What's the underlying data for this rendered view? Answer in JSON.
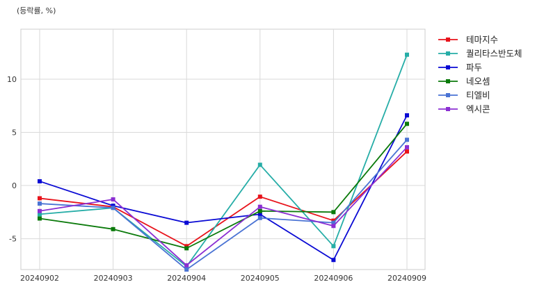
{
  "chart_data": {
    "type": "line",
    "unit_label": "(등락률, %)",
    "categories": [
      "20240902",
      "20240903",
      "20240904",
      "20240905",
      "20240906",
      "20240909"
    ],
    "y_ticks": [
      10,
      5,
      0,
      -5
    ],
    "ylim": [
      -7.9,
      14.7
    ],
    "grid": true,
    "legend_position": "right",
    "marker": "square",
    "series": [
      {
        "name": "테마지수",
        "color": "#e8131b",
        "values": [
          -1.2,
          -2.0,
          -5.7,
          -1.05,
          -3.3,
          3.2
        ]
      },
      {
        "name": "퀄리타스반도체",
        "color": "#26ada7",
        "values": [
          -2.7,
          -2.1,
          -7.6,
          1.95,
          -5.7,
          12.3
        ]
      },
      {
        "name": "파두",
        "color": "#0a0ad4",
        "values": [
          0.4,
          -1.9,
          -3.5,
          -2.7,
          -7.0,
          6.6
        ]
      },
      {
        "name": "네오셈",
        "color": "#0b7a0b",
        "values": [
          -3.1,
          -4.1,
          -5.9,
          -2.4,
          -2.5,
          5.8
        ]
      },
      {
        "name": "티엘비",
        "color": "#4a73d4",
        "values": [
          -1.7,
          -2.1,
          -7.9,
          -3.05,
          -3.5,
          4.3
        ]
      },
      {
        "name": "엑시콘",
        "color": "#8b2fd2",
        "values": [
          -2.4,
          -1.3,
          -7.5,
          -2.0,
          -3.8,
          3.6
        ]
      }
    ]
  }
}
